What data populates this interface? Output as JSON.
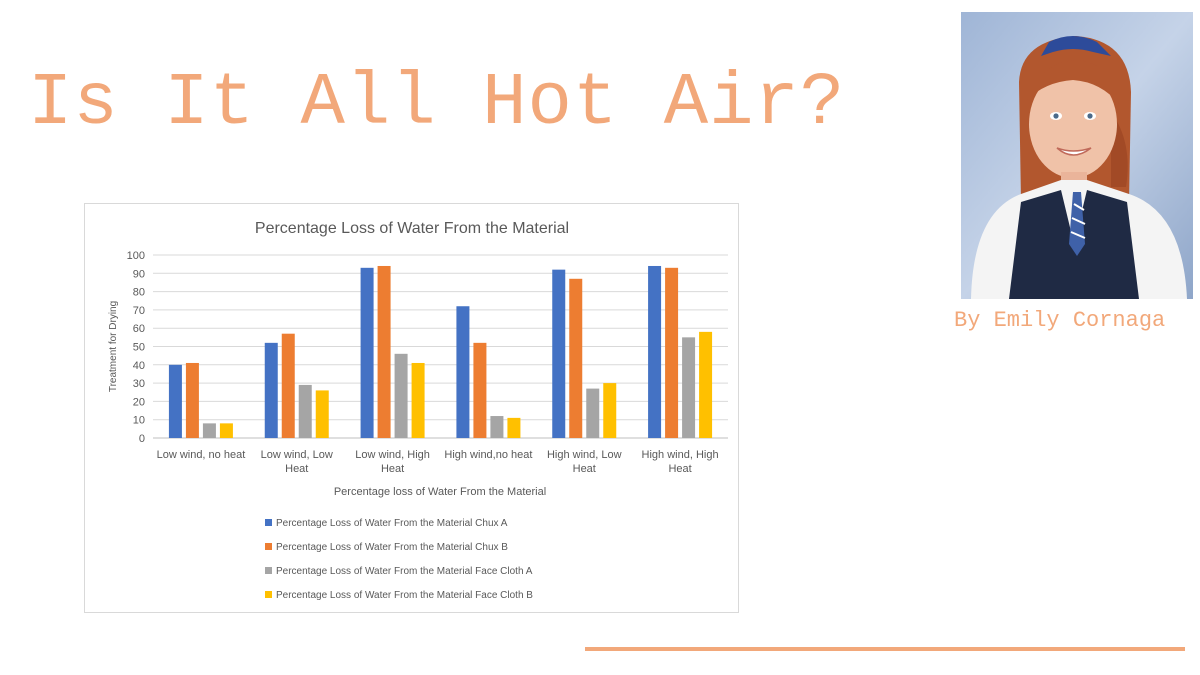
{
  "slide": {
    "title": "Is It All Hot Air?",
    "byline": "By Emily Cornaga",
    "accent_color": "#F2A87A"
  },
  "chart_data": {
    "type": "bar",
    "title": "Percentage Loss of Water From the Material",
    "xlabel": "Percentage loss of Water From the Material",
    "ylabel": "Treatment for Drying",
    "ylim": [
      0,
      100
    ],
    "ytick_step": 10,
    "grid": true,
    "legend_position": "bottom",
    "categories": [
      [
        "Low wind, no heat"
      ],
      [
        "Low wind, Low",
        "Heat"
      ],
      [
        "Low wind, High",
        "Heat"
      ],
      [
        "High wind,no heat"
      ],
      [
        "High wind, Low",
        "Heat"
      ],
      [
        "High wind, High",
        "Heat"
      ]
    ],
    "series": [
      {
        "name": "Percentage Loss of Water From the Material Chux A",
        "color": "#4472C4",
        "values": [
          40,
          52,
          93,
          72,
          92,
          94
        ]
      },
      {
        "name": "Percentage Loss of Water From the Material Chux B",
        "color": "#ED7D31",
        "values": [
          41,
          57,
          94,
          52,
          87,
          93
        ]
      },
      {
        "name": "Percentage Loss of Water From the Material Face Cloth A",
        "color": "#A5A5A5",
        "values": [
          8,
          29,
          46,
          12,
          27,
          55
        ]
      },
      {
        "name": "Percentage Loss of Water From the Material Face Cloth B",
        "color": "#FFC000",
        "values": [
          8,
          26,
          41,
          11,
          30,
          58
        ]
      }
    ]
  }
}
